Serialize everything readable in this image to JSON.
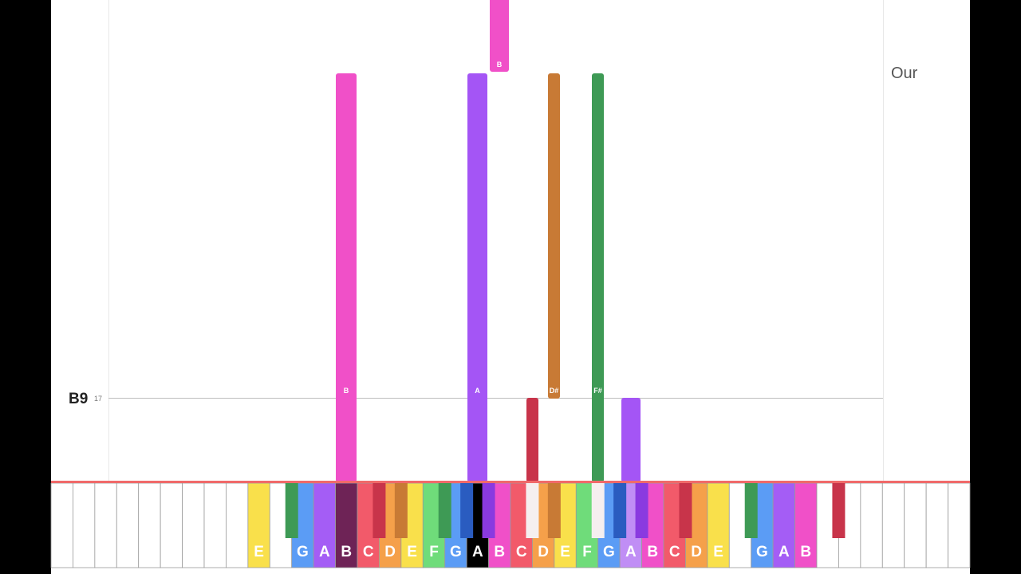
{
  "side_text": "Our",
  "marker": {
    "label": "B9",
    "number": "17"
  },
  "notes": [
    {
      "label": "B",
      "color": "#f050c8"
    },
    {
      "label": "A",
      "color": "#a455f5"
    },
    {
      "label": "D#",
      "color": "#c87a35"
    },
    {
      "label": "F#",
      "color": "#3e9a55"
    },
    {
      "label": "B",
      "color": "#f050c8"
    },
    {
      "color": "#c8344a"
    },
    {
      "color": "#a455f5"
    }
  ],
  "keyboard": {
    "white_keys": [
      {
        "color": "#ffffff"
      },
      {
        "color": "#ffffff"
      },
      {
        "color": "#ffffff"
      },
      {
        "color": "#ffffff"
      },
      {
        "color": "#ffffff"
      },
      {
        "color": "#ffffff"
      },
      {
        "color": "#ffffff"
      },
      {
        "color": "#ffffff"
      },
      {
        "color": "#ffffff"
      },
      {
        "label": "E",
        "color": "#f9e04b"
      },
      {
        "color": "#ffffff"
      },
      {
        "label": "G",
        "color": "#5b9cf5"
      },
      {
        "label": "A",
        "color": "#a45df5"
      },
      {
        "label": "B",
        "color": "#6e2356"
      },
      {
        "label": "C",
        "color": "#f25a6a"
      },
      {
        "label": "D",
        "color": "#f5a04a"
      },
      {
        "label": "E",
        "color": "#f9e04b"
      },
      {
        "label": "F",
        "color": "#6fdc7a"
      },
      {
        "label": "G",
        "color": "#5b9cf5"
      },
      {
        "label": "A",
        "color": "#000000"
      },
      {
        "label": "B",
        "color": "#f050c8"
      },
      {
        "label": "C",
        "color": "#f25a6a"
      },
      {
        "label": "D",
        "color": "#f5a04a"
      },
      {
        "label": "E",
        "color": "#f9e04b"
      },
      {
        "label": "F",
        "color": "#6fdc7a"
      },
      {
        "label": "G",
        "color": "#5b9cf5"
      },
      {
        "label": "A",
        "color": "#c08ef5"
      },
      {
        "label": "B",
        "color": "#f050c8"
      },
      {
        "label": "C",
        "color": "#f25a6a"
      },
      {
        "label": "D",
        "color": "#f5a04a"
      },
      {
        "label": "E",
        "color": "#f9e04b"
      },
      {
        "color": "#ffffff"
      },
      {
        "label": "G",
        "color": "#5b9cf5"
      },
      {
        "label": "A",
        "color": "#a45df5"
      },
      {
        "label": "B",
        "color": "#f050c8"
      },
      {
        "color": "#ffffff"
      },
      {
        "color": "#ffffff"
      },
      {
        "color": "#ffffff"
      },
      {
        "color": "#ffffff"
      },
      {
        "color": "#ffffff"
      },
      {
        "color": "#ffffff"
      },
      {
        "color": "#ffffff"
      }
    ],
    "black_keys": [
      null,
      null,
      null,
      null,
      null,
      null,
      null,
      "#3e9a55",
      null,
      null,
      "#c8344a",
      "#c87a35",
      "#3e9a55",
      "#2a5cc0",
      "#8a3ae0",
      "#f5efef",
      "#c87a35",
      "#f5efef",
      "#2a5cc0",
      "#8a3ae0",
      "#c8344a",
      null,
      "#3e9a55",
      null,
      null,
      "#c8344a",
      null,
      null,
      null,
      null
    ]
  }
}
